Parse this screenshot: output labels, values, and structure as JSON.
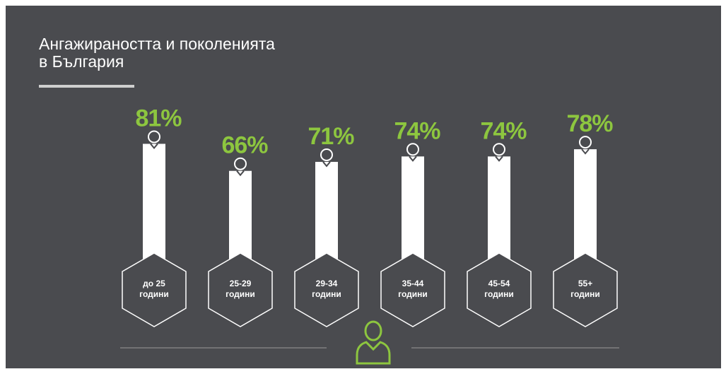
{
  "chart_data": {
    "type": "bar",
    "title": [
      "Ангажираността и поколенията",
      "в България"
    ],
    "categories": [
      "до 25 години",
      "25-29 години",
      "29-34 години",
      "35-44 години",
      "45-54 години",
      "55+ години"
    ],
    "values": [
      81,
      66,
      71,
      74,
      74,
      78
    ],
    "value_labels": [
      "81%",
      "66%",
      "71%",
      "74%",
      "74%",
      "78%"
    ],
    "color": "#ffffff",
    "label_color": "#8dc63f"
  }
}
